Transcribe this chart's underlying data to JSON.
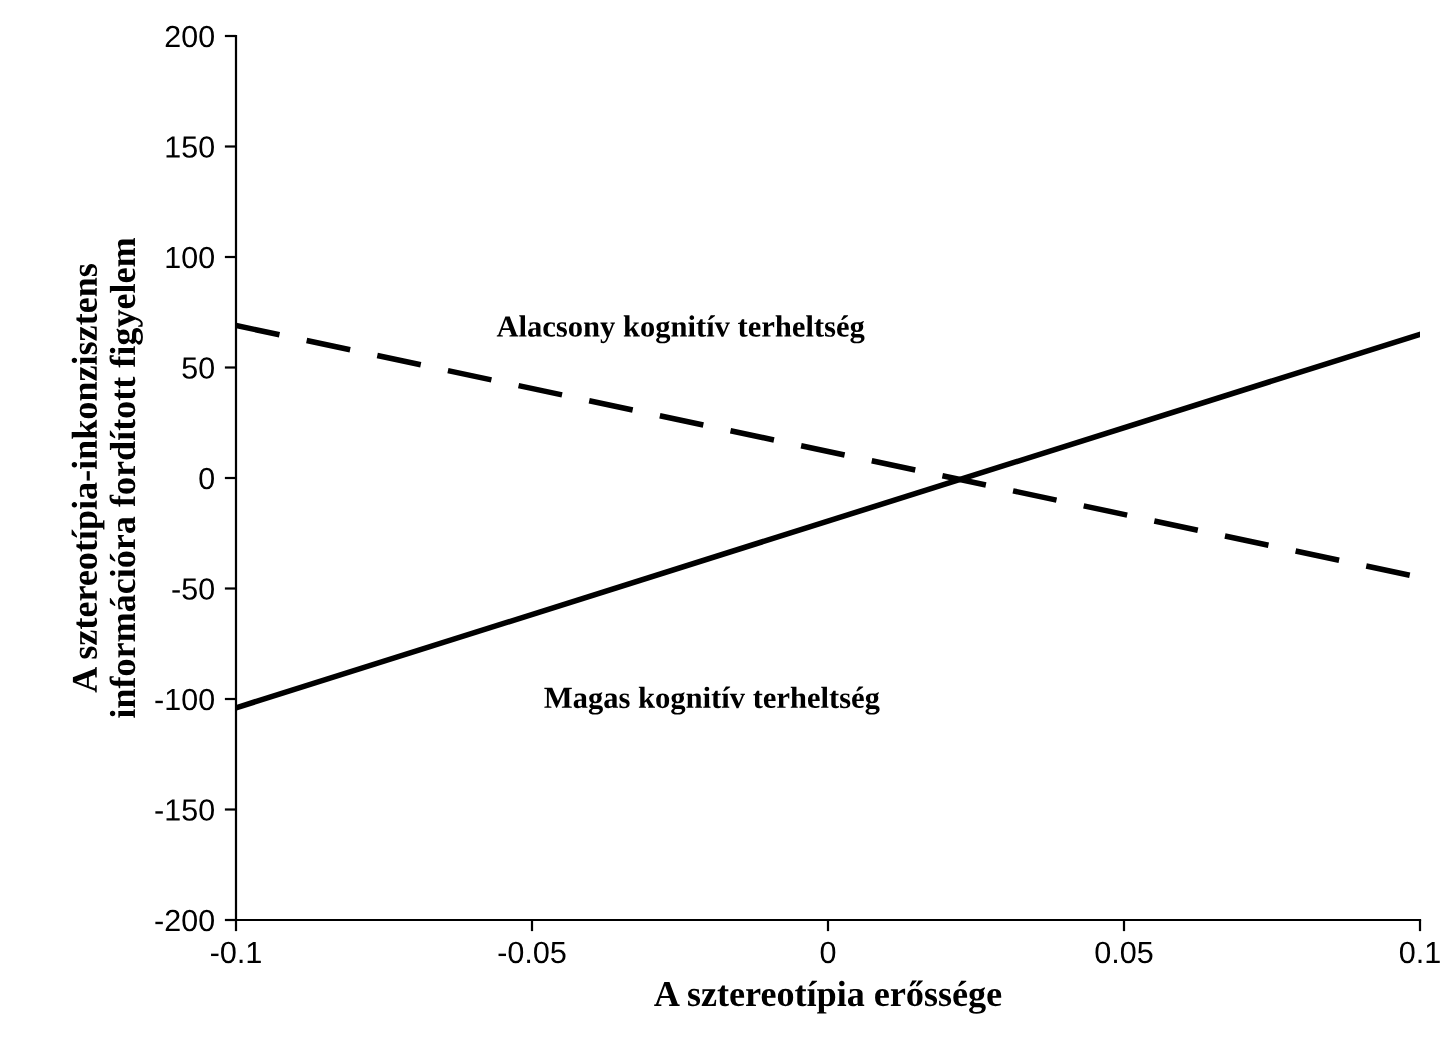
{
  "chart_data": {
    "type": "line",
    "xlabel": "A sztereotípia erőssége",
    "ylabel": "A sztereotípia-inkonzisztens\ninformációra fordított figyelem",
    "x": [
      -0.1,
      0.1
    ],
    "xlim": [
      -0.1,
      0.1
    ],
    "xticks": [
      -0.1,
      -0.05,
      0,
      0.05,
      0.1
    ],
    "ylim": [
      -200,
      200
    ],
    "yticks": [
      -200,
      -150,
      -100,
      -50,
      0,
      50,
      100,
      150,
      200
    ],
    "grid": false,
    "legend": false,
    "marker": "none",
    "series": [
      {
        "name": "Alacsony kognitív terheltség",
        "color": "#000000",
        "line_style": "dashed",
        "values": [
          69,
          -45
        ]
      },
      {
        "name": "Magas kognitív terheltség",
        "color": "#000000",
        "line_style": "solid",
        "values": [
          -104,
          65
        ]
      }
    ]
  }
}
